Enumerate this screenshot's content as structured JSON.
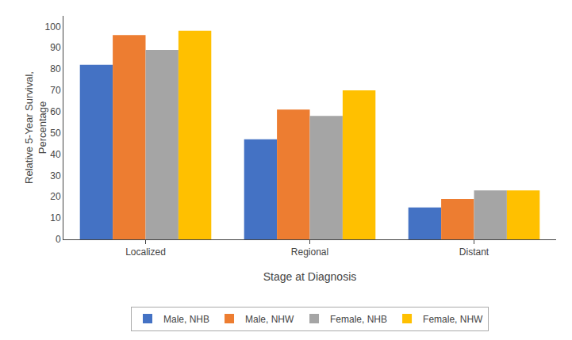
{
  "chart_data": {
    "type": "bar",
    "xlabel": "Stage at Diagnosis",
    "ylabel": "Relative 5-Year Survival,\nPercentage",
    "categories": [
      "Localized",
      "Regional",
      "Distant"
    ],
    "series": [
      {
        "name": "Male, NHB",
        "color": "#4472C4",
        "values": [
          82,
          47,
          15
        ]
      },
      {
        "name": "Male, NHW",
        "color": "#ED7D31",
        "values": [
          96,
          61,
          19
        ]
      },
      {
        "name": "Female, NHB",
        "color": "#A5A5A5",
        "values": [
          89,
          58,
          23
        ]
      },
      {
        "name": "Female, NHW",
        "color": "#FFC000",
        "values": [
          98,
          70,
          23
        ]
      }
    ],
    "ylim": [
      0,
      105
    ],
    "yticks": [
      0,
      10,
      20,
      30,
      40,
      50,
      60,
      70,
      80,
      90,
      100
    ],
    "grid": false,
    "legend": "bottom"
  }
}
